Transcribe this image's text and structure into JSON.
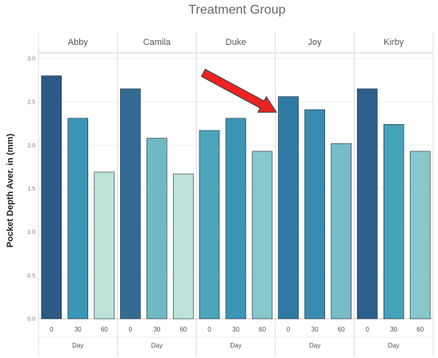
{
  "chart_data": {
    "type": "bar",
    "title": "Treatment Group",
    "ylabel": "Pocket Depth Aver. in (mm)",
    "xlabel": "Day",
    "ylim": [
      0,
      3.0
    ],
    "yticks": [
      "3.0",
      "2.5",
      "2.0",
      "1.5",
      "1.0",
      "0.5",
      "0.0"
    ],
    "ytick_values": [
      3.0,
      2.5,
      2.0,
      1.5,
      1.0,
      0.5,
      0.0
    ],
    "categories": [
      "0",
      "30",
      "60"
    ],
    "panels": [
      {
        "name": "Abby",
        "values": [
          2.8,
          2.31,
          1.69
        ]
      },
      {
        "name": "Camila",
        "values": [
          2.65,
          2.08,
          1.67
        ]
      },
      {
        "name": "Duke",
        "values": [
          2.17,
          2.31,
          1.93
        ]
      },
      {
        "name": "Joy",
        "values": [
          2.56,
          2.41,
          2.02
        ]
      },
      {
        "name": "Kirby",
        "values": [
          2.65,
          2.24,
          1.93
        ]
      }
    ],
    "grid": true,
    "annotation": "red-arrow-pointing-to-joy-day-0",
    "colors": {
      "Abby": [
        "#2c5985",
        "#3b96b5",
        "#bce4d9"
      ],
      "Camila": [
        "#336b92",
        "#6fb9c4",
        "#bce4d9"
      ],
      "Duke": [
        "#4ba6ba",
        "#3b96b5",
        "#86c8cc"
      ],
      "Joy": [
        "#2e7aa3",
        "#3a8bb0",
        "#76bcc7"
      ],
      "Kirby": [
        "#2c5f8c",
        "#45a2b9",
        "#86c8cc"
      ],
      "arrow": "#ee2222",
      "arrow_outline": "#444444"
    }
  }
}
